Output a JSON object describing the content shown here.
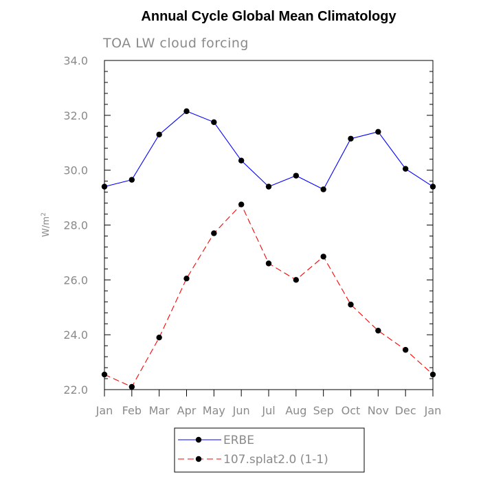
{
  "chart_data": {
    "type": "line",
    "title": "Annual Cycle Global Mean Climatology",
    "subtitle": "TOA LW cloud forcing",
    "ylabel": "W/m",
    "ylabel_superscript": "2",
    "xlabel": "",
    "categories": [
      "Jan",
      "Feb",
      "Mar",
      "Apr",
      "May",
      "Jun",
      "Jul",
      "Aug",
      "Sep",
      "Oct",
      "Nov",
      "Dec",
      "Jan"
    ],
    "ylim": [
      22.0,
      34.0
    ],
    "yticks": [
      "22.0",
      "24.0",
      "26.0",
      "28.0",
      "30.0",
      "32.0",
      "34.0"
    ],
    "series": [
      {
        "name": "ERBE",
        "color": "#0000ff",
        "dash": "solid",
        "values": [
          29.4,
          29.65,
          31.3,
          32.15,
          31.75,
          30.35,
          29.4,
          29.8,
          29.3,
          31.15,
          31.4,
          30.05,
          29.4
        ]
      },
      {
        "name": "107.splat2.0 (1-1)",
        "color": "#ff0000",
        "dash": "dashed",
        "values": [
          22.55,
          22.1,
          23.9,
          26.05,
          27.7,
          28.75,
          26.6,
          26.0,
          26.85,
          25.1,
          24.15,
          23.45,
          22.55
        ]
      }
    ]
  }
}
